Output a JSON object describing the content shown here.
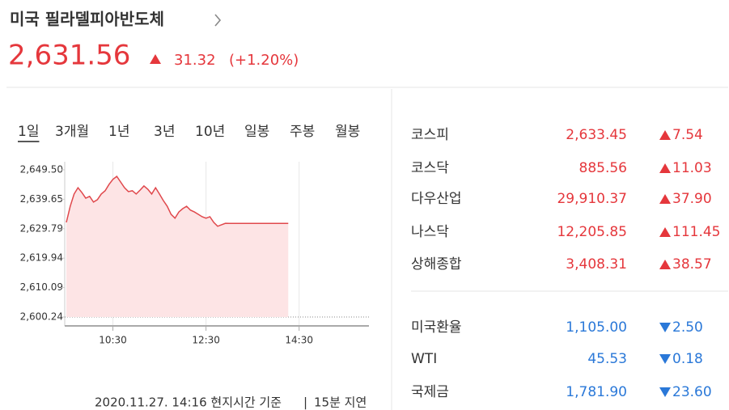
{
  "header": {
    "title": "미국 필라델피아반도체",
    "price": "2,631.56",
    "change": "31.32",
    "change_pct": "(+1.20%)",
    "direction": "up"
  },
  "tabs": {
    "items": [
      "1일",
      "3개월",
      "1년",
      "3년",
      "10년",
      "일봉",
      "주봉",
      "월봉"
    ],
    "selected": 0
  },
  "chart_data": {
    "type": "area",
    "x": [
      "09:30",
      "09:35",
      "09:40",
      "09:45",
      "09:50",
      "09:55",
      "10:00",
      "10:05",
      "10:10",
      "10:15",
      "10:20",
      "10:25",
      "10:30",
      "10:35",
      "10:40",
      "10:45",
      "10:50",
      "10:55",
      "11:00",
      "11:05",
      "11:10",
      "11:15",
      "11:20",
      "11:25",
      "11:30",
      "11:35",
      "11:40",
      "11:45",
      "11:50",
      "11:55",
      "12:00",
      "12:05",
      "12:10",
      "12:15",
      "12:20",
      "12:25",
      "12:30",
      "12:35",
      "12:40",
      "12:45",
      "12:50",
      "12:55",
      "13:00",
      "14:16"
    ],
    "values": [
      2631.9,
      2637.3,
      2641.4,
      2643.5,
      2641.9,
      2640.0,
      2640.6,
      2638.7,
      2639.5,
      2641.4,
      2642.5,
      2644.6,
      2646.3,
      2647.3,
      2645.4,
      2643.5,
      2642.2,
      2642.5,
      2641.4,
      2642.7,
      2644.1,
      2643.0,
      2641.4,
      2643.5,
      2641.4,
      2639.2,
      2637.3,
      2634.6,
      2633.3,
      2635.4,
      2636.5,
      2637.3,
      2636.0,
      2635.4,
      2634.6,
      2633.8,
      2633.3,
      2633.8,
      2631.9,
      2630.6,
      2631.1,
      2631.6,
      2631.56,
      2631.56
    ],
    "xlim": [
      "09:30",
      "16:00"
    ],
    "ylim": [
      2597.26,
      2652.2
    ],
    "yticks": [
      {
        "value": 2600.24,
        "label": "2,600.24"
      },
      {
        "value": 2610.09,
        "label": "2,610.09"
      },
      {
        "value": 2619.94,
        "label": "2,619.94"
      },
      {
        "value": 2629.79,
        "label": "2,629.79"
      },
      {
        "value": 2639.65,
        "label": "2,639.65"
      },
      {
        "value": 2649.5,
        "label": "2,649.50"
      }
    ],
    "xticks": [
      "10:30",
      "12:30",
      "14:30"
    ],
    "color": "#e0484c",
    "grid": true
  },
  "indices": [
    {
      "name": "코스피",
      "value": "2,633.45",
      "change": "7.54",
      "direction": "up"
    },
    {
      "name": "코스닥",
      "value": "885.56",
      "change": "11.03",
      "direction": "up"
    },
    {
      "name": "다우산업",
      "value": "29,910.37",
      "change": "37.90",
      "direction": "up"
    },
    {
      "name": "나스닥",
      "value": "12,205.85",
      "change": "111.45",
      "direction": "up"
    },
    {
      "name": "상해종합",
      "value": "3,408.31",
      "change": "38.57",
      "direction": "up"
    },
    {
      "name": "미국환율",
      "value": "1,105.00",
      "change": "2.50",
      "direction": "down"
    },
    {
      "name": "WTI",
      "value": "45.53",
      "change": "0.18",
      "direction": "down"
    },
    {
      "name": "국제금",
      "value": "1,781.90",
      "change": "23.60",
      "direction": "down"
    }
  ],
  "footer": {
    "timestamp": "2020.11.27. 14:16 현지시간 기준",
    "delay": "15분 지연"
  }
}
